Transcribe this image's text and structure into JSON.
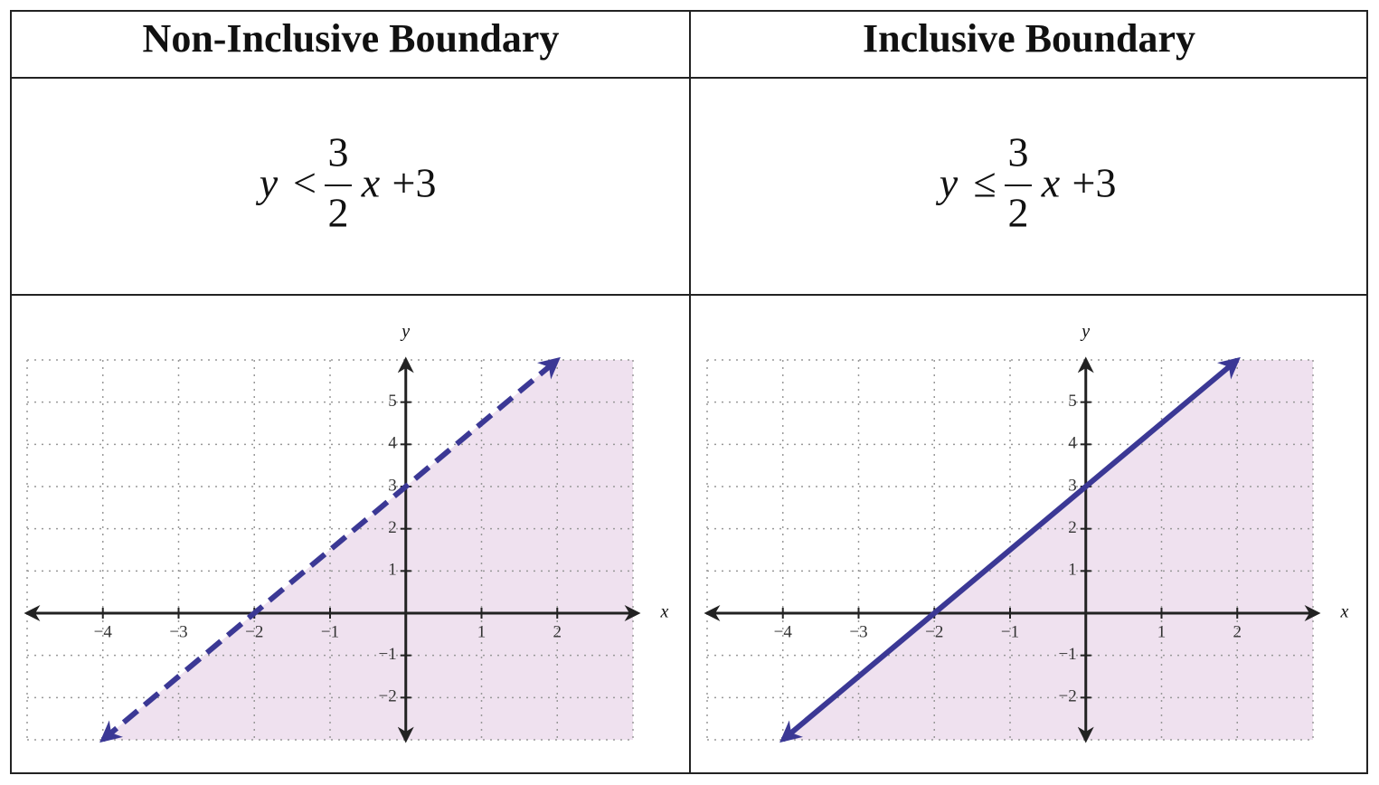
{
  "table": {
    "headers": [
      "Non-Inclusive Boundary",
      "Inclusive Boundary"
    ],
    "inequalities": [
      {
        "lhs": "y",
        "relation": "<",
        "numerator": "3",
        "denominator": "2",
        "variable": "x",
        "tail": "+3"
      },
      {
        "lhs": "y",
        "relation": "≤",
        "numerator": "3",
        "denominator": "2",
        "variable": "x",
        "tail": "+3"
      }
    ]
  },
  "chart_data": [
    {
      "type": "line",
      "xlabel": "x",
      "ylabel": "y",
      "x": [
        -4,
        2
      ],
      "series": [
        {
          "values": [
            -3,
            6
          ],
          "color": "#3b3895",
          "dashed": true
        }
      ],
      "xlim": [
        -5,
        3
      ],
      "ylim": [
        -3,
        6
      ],
      "xticks": [
        {
          "value": -4,
          "label": "−4"
        },
        {
          "value": -3,
          "label": "−3"
        },
        {
          "value": -2,
          "label": "−2"
        },
        {
          "value": -1,
          "label": "−1"
        },
        1,
        2
      ],
      "yticks": [
        {
          "value": -2,
          "label": "−2"
        },
        {
          "value": -1,
          "label": "−1"
        },
        1,
        2,
        3,
        4,
        5
      ],
      "grid": true,
      "shade": "below",
      "shade_color": "#efe1ef"
    },
    {
      "type": "line",
      "xlabel": "x",
      "ylabel": "y",
      "x": [
        -4,
        2
      ],
      "series": [
        {
          "values": [
            -3,
            6
          ],
          "color": "#3b3895",
          "dashed": false
        }
      ],
      "xlim": [
        -5,
        3
      ],
      "ylim": [
        -3,
        6
      ],
      "xticks": [
        {
          "value": -4,
          "label": "−4"
        },
        {
          "value": -3,
          "label": "−3"
        },
        {
          "value": -2,
          "label": "−2"
        },
        {
          "value": -1,
          "label": "−1"
        },
        1,
        2
      ],
      "yticks": [
        {
          "value": -2,
          "label": "−2"
        },
        {
          "value": -1,
          "label": "−1"
        },
        1,
        2,
        3,
        4,
        5
      ],
      "grid": true,
      "shade": "below",
      "shade_color": "#efe1ef"
    }
  ]
}
